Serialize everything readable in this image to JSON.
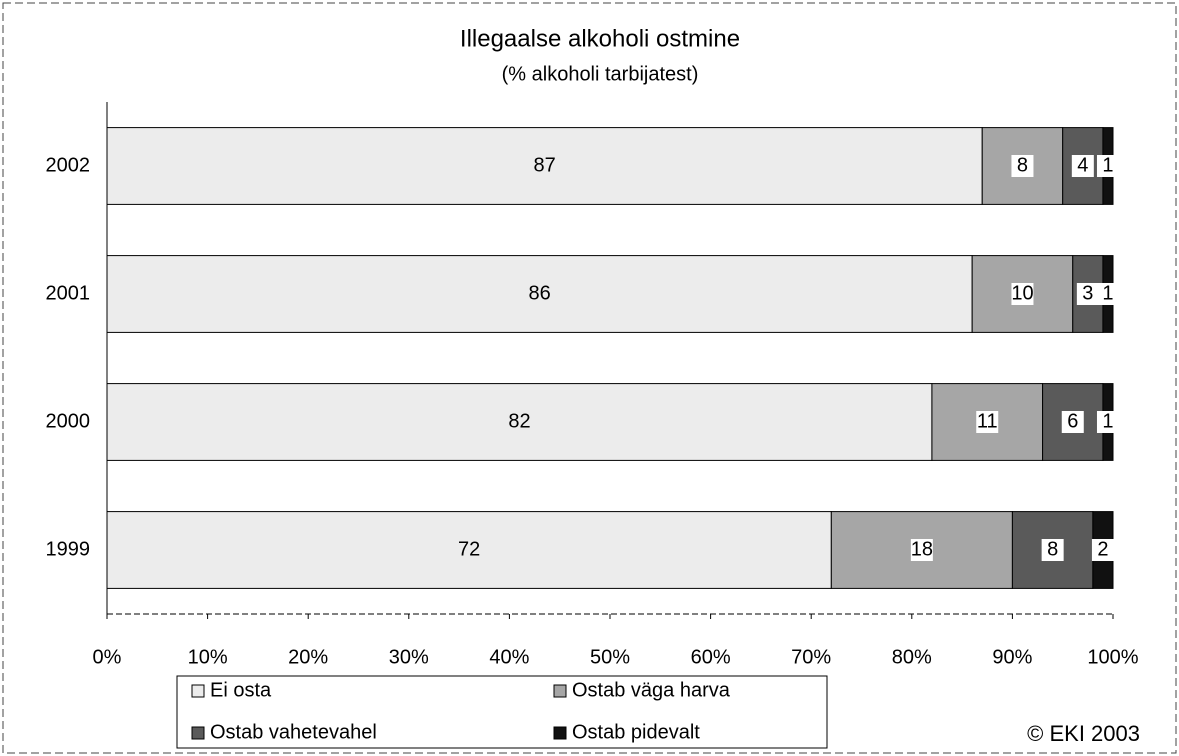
{
  "chart_data": {
    "type": "stacked_barh",
    "title": "Illegaalse alkoholi ostmine",
    "subtitle": "(% alkoholi tarbijatest)",
    "categories": [
      "2002",
      "2001",
      "2000",
      "1999"
    ],
    "series": [
      {
        "name": "Ei osta",
        "color": "#ececec",
        "values": [
          87,
          86,
          82,
          72
        ]
      },
      {
        "name": "Ostab väga harva",
        "color": "#a6a6a6",
        "values": [
          8,
          10,
          11,
          18
        ]
      },
      {
        "name": "Ostab vahetevahel",
        "color": "#5a5a5a",
        "values": [
          4,
          3,
          6,
          8
        ]
      },
      {
        "name": "Ostab pidevalt",
        "color": "#111111",
        "values": [
          1,
          1,
          1,
          2
        ]
      }
    ],
    "xlim": [
      0,
      100
    ],
    "xticks": [
      {
        "value": 0,
        "label": "0%"
      },
      {
        "value": 10,
        "label": "10%"
      },
      {
        "value": 20,
        "label": "20%"
      },
      {
        "value": 30,
        "label": "30%"
      },
      {
        "value": 40,
        "label": "40%"
      },
      {
        "value": 50,
        "label": "50%"
      },
      {
        "value": 60,
        "label": "60%"
      },
      {
        "value": 70,
        "label": "70%"
      },
      {
        "value": 80,
        "label": "80%"
      },
      {
        "value": 90,
        "label": "90%"
      },
      {
        "value": 100,
        "label": "100%"
      }
    ],
    "annotation": "© EKI 2003"
  }
}
